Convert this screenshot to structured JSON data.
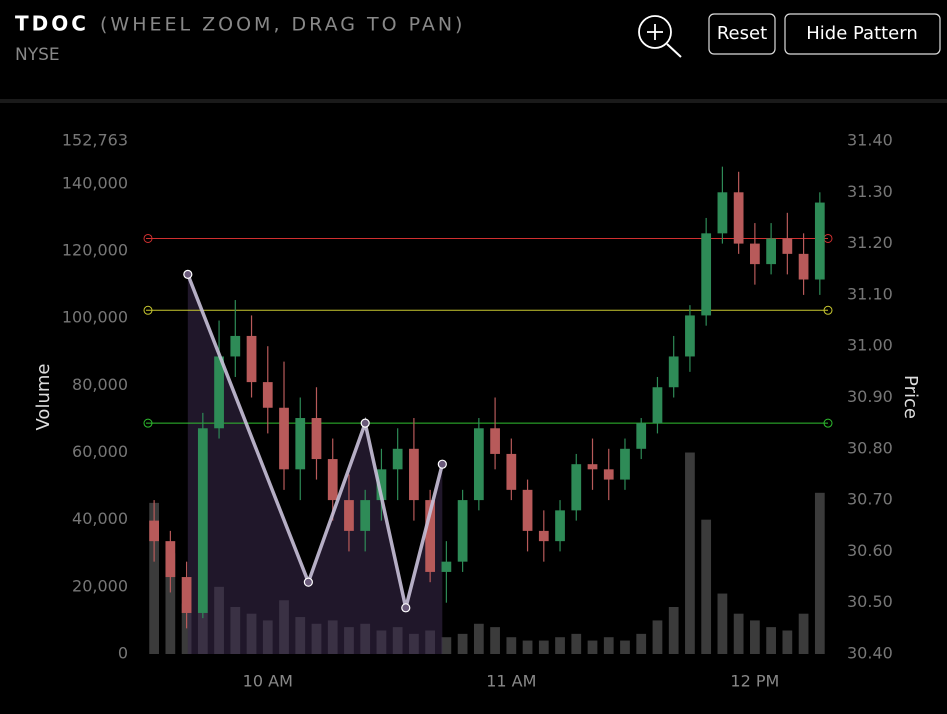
{
  "header": {
    "title": "TDOC",
    "subtitle": "(WHEEL ZOOM, DRAG TO PAN)",
    "exchange": "NYSE"
  },
  "controls": {
    "buttons": [
      "Reset",
      "Hide Pattern"
    ]
  },
  "chart_data": {
    "type": "candlestick",
    "x": [
      572,
      576,
      580,
      584,
      588,
      592,
      596,
      600,
      604,
      608,
      612,
      616,
      620,
      624,
      628,
      632,
      636,
      640,
      644,
      648,
      652,
      656,
      660,
      664,
      668,
      672,
      676,
      680,
      684,
      688,
      692,
      696,
      700,
      704,
      708,
      712,
      716,
      720,
      724,
      728,
      732,
      736
    ],
    "open": [
      30.66,
      30.62,
      30.55,
      30.48,
      30.84,
      30.98,
      31.02,
      30.93,
      30.88,
      30.76,
      30.86,
      30.78,
      30.7,
      30.64,
      30.7,
      30.76,
      30.8,
      30.7,
      30.56,
      30.58,
      30.7,
      30.84,
      30.79,
      30.72,
      30.64,
      30.62,
      30.68,
      30.77,
      30.76,
      30.74,
      30.8,
      30.85,
      30.92,
      30.98,
      31.06,
      31.22,
      31.3,
      31.2,
      31.16,
      31.21,
      31.18,
      31.13
    ],
    "high": [
      30.7,
      30.64,
      30.58,
      30.87,
      31.05,
      31.09,
      31.06,
      31.0,
      30.97,
      30.9,
      30.92,
      30.82,
      30.75,
      30.72,
      30.8,
      30.84,
      30.86,
      30.72,
      30.62,
      30.72,
      30.86,
      30.9,
      30.82,
      30.74,
      30.68,
      30.7,
      30.79,
      30.82,
      30.8,
      30.82,
      30.86,
      30.94,
      31.02,
      31.08,
      31.25,
      31.35,
      31.34,
      31.24,
      31.24,
      31.26,
      31.22,
      31.3
    ],
    "low": [
      30.58,
      30.52,
      30.45,
      30.47,
      30.82,
      30.94,
      30.9,
      30.83,
      30.72,
      30.7,
      30.74,
      30.66,
      30.6,
      30.6,
      30.66,
      30.7,
      30.66,
      30.54,
      30.5,
      30.56,
      30.68,
      30.76,
      30.7,
      30.6,
      30.58,
      30.6,
      30.66,
      30.72,
      30.7,
      30.72,
      30.78,
      30.83,
      30.9,
      30.95,
      31.04,
      31.2,
      31.18,
      31.12,
      31.14,
      31.14,
      31.1,
      31.1
    ],
    "close": [
      30.62,
      30.55,
      30.48,
      30.84,
      30.98,
      31.02,
      30.93,
      30.88,
      30.76,
      30.86,
      30.78,
      30.7,
      30.64,
      30.7,
      30.76,
      30.8,
      30.7,
      30.56,
      30.58,
      30.7,
      30.84,
      30.79,
      30.72,
      30.64,
      30.62,
      30.68,
      30.77,
      30.76,
      30.74,
      30.8,
      30.85,
      30.92,
      30.98,
      31.06,
      31.22,
      31.3,
      31.2,
      31.16,
      31.21,
      31.18,
      31.13,
      31.28
    ],
    "volume": [
      45000,
      30000,
      15000,
      60000,
      20000,
      14000,
      12000,
      10000,
      16000,
      11000,
      9000,
      10000,
      8000,
      9000,
      7000,
      8000,
      6000,
      7000,
      5000,
      6000,
      9000,
      8000,
      5000,
      4000,
      4000,
      5000,
      6000,
      4000,
      5000,
      4000,
      6000,
      10000,
      14000,
      60000,
      40000,
      18000,
      12000,
      10000,
      8000,
      7000,
      12000,
      48000
    ],
    "up_color": "#2e8b57",
    "down_color": "#b85a5a",
    "volume_color": "#4a4a4a",
    "xlim": [
      570,
      739
    ],
    "xticks": [
      {
        "value": 600,
        "label": "10 AM"
      },
      {
        "value": 660,
        "label": "11 AM"
      },
      {
        "value": 720,
        "label": "12 PM"
      }
    ],
    "ylabel": "Volume",
    "ylim": [
      0,
      152763
    ],
    "yticks": [
      0,
      {
        "value": 20000,
        "label": "20,000"
      },
      {
        "value": 40000,
        "label": "40,000"
      },
      {
        "value": 60000,
        "label": "60,000"
      },
      {
        "value": 80000,
        "label": "80,000"
      },
      {
        "value": 100000,
        "label": "100,000"
      },
      {
        "value": 120000,
        "label": "120,000"
      },
      {
        "value": 140000,
        "label": "140,000"
      },
      {
        "value": 152763,
        "label": "152,763"
      }
    ],
    "y2label": "Price",
    "y2lim": [
      30.4,
      31.4
    ],
    "y2ticks": [
      {
        "value": 30.4,
        "label": "30.40"
      },
      {
        "value": 30.5,
        "label": "30.50"
      },
      {
        "value": 30.6,
        "label": "30.60"
      },
      {
        "value": 30.7,
        "label": "30.70"
      },
      {
        "value": 30.8,
        "label": "30.80"
      },
      {
        "value": 30.9,
        "label": "30.90"
      },
      {
        "value": 31.0,
        "label": "31.00"
      },
      {
        "value": 31.1,
        "label": "31.10"
      },
      {
        "value": 31.2,
        "label": "31.20"
      },
      {
        "value": 31.3,
        "label": "31.30"
      },
      {
        "value": 31.4,
        "label": "31.40"
      }
    ],
    "levels": [
      {
        "value": 31.21,
        "color": "#d03030"
      },
      {
        "value": 31.07,
        "color": "#c8c830"
      },
      {
        "value": 30.85,
        "color": "#30c030"
      }
    ],
    "pattern": {
      "x": [
        580.3,
        610,
        624,
        634,
        643
      ],
      "values": [
        31.14,
        30.54,
        30.85,
        30.49,
        30.77
      ],
      "color": "#c8c0d8",
      "fill": "#3a2a4c"
    }
  }
}
